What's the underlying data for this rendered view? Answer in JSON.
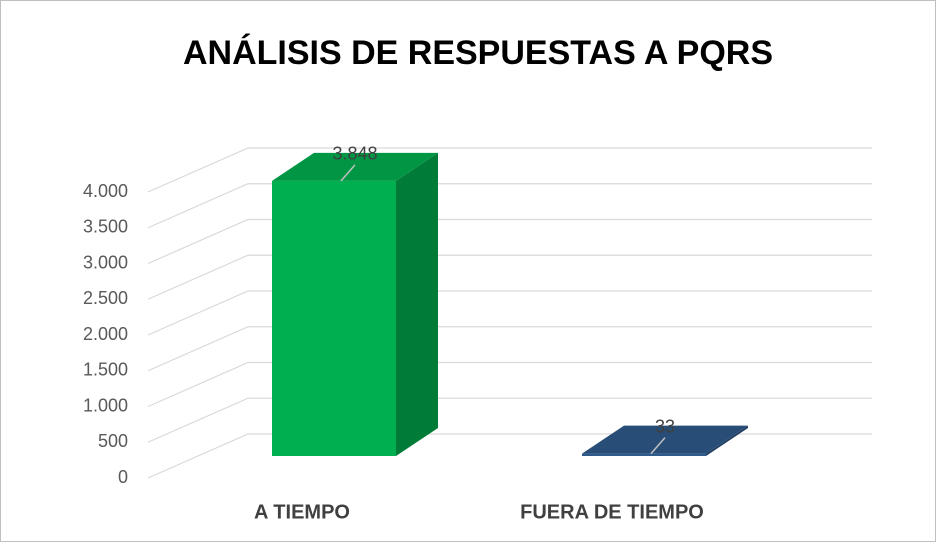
{
  "chart_data": {
    "type": "bar3d",
    "title": "ANÁLISIS DE RESPUESTAS A PQRS",
    "categories": [
      "A TIEMPO",
      "FUERA DE TIEMPO"
    ],
    "values": [
      3848,
      33
    ],
    "value_labels": [
      "3.848",
      "33"
    ],
    "colors": [
      "#00b050",
      "#2f5a8c"
    ],
    "ylim": [
      0,
      4000
    ],
    "yticks": [
      0,
      500,
      {
        "value": 1000,
        "label": "1.000"
      },
      {
        "value": 1500,
        "label": "1.500"
      },
      {
        "value": 2000,
        "label": "2.000"
      },
      {
        "value": 2500,
        "label": "2.500"
      },
      {
        "value": 3000,
        "label": "3.000"
      },
      {
        "value": 3500,
        "label": "3.500"
      },
      {
        "value": 4000,
        "label": "4.000"
      }
    ],
    "grid": true
  }
}
